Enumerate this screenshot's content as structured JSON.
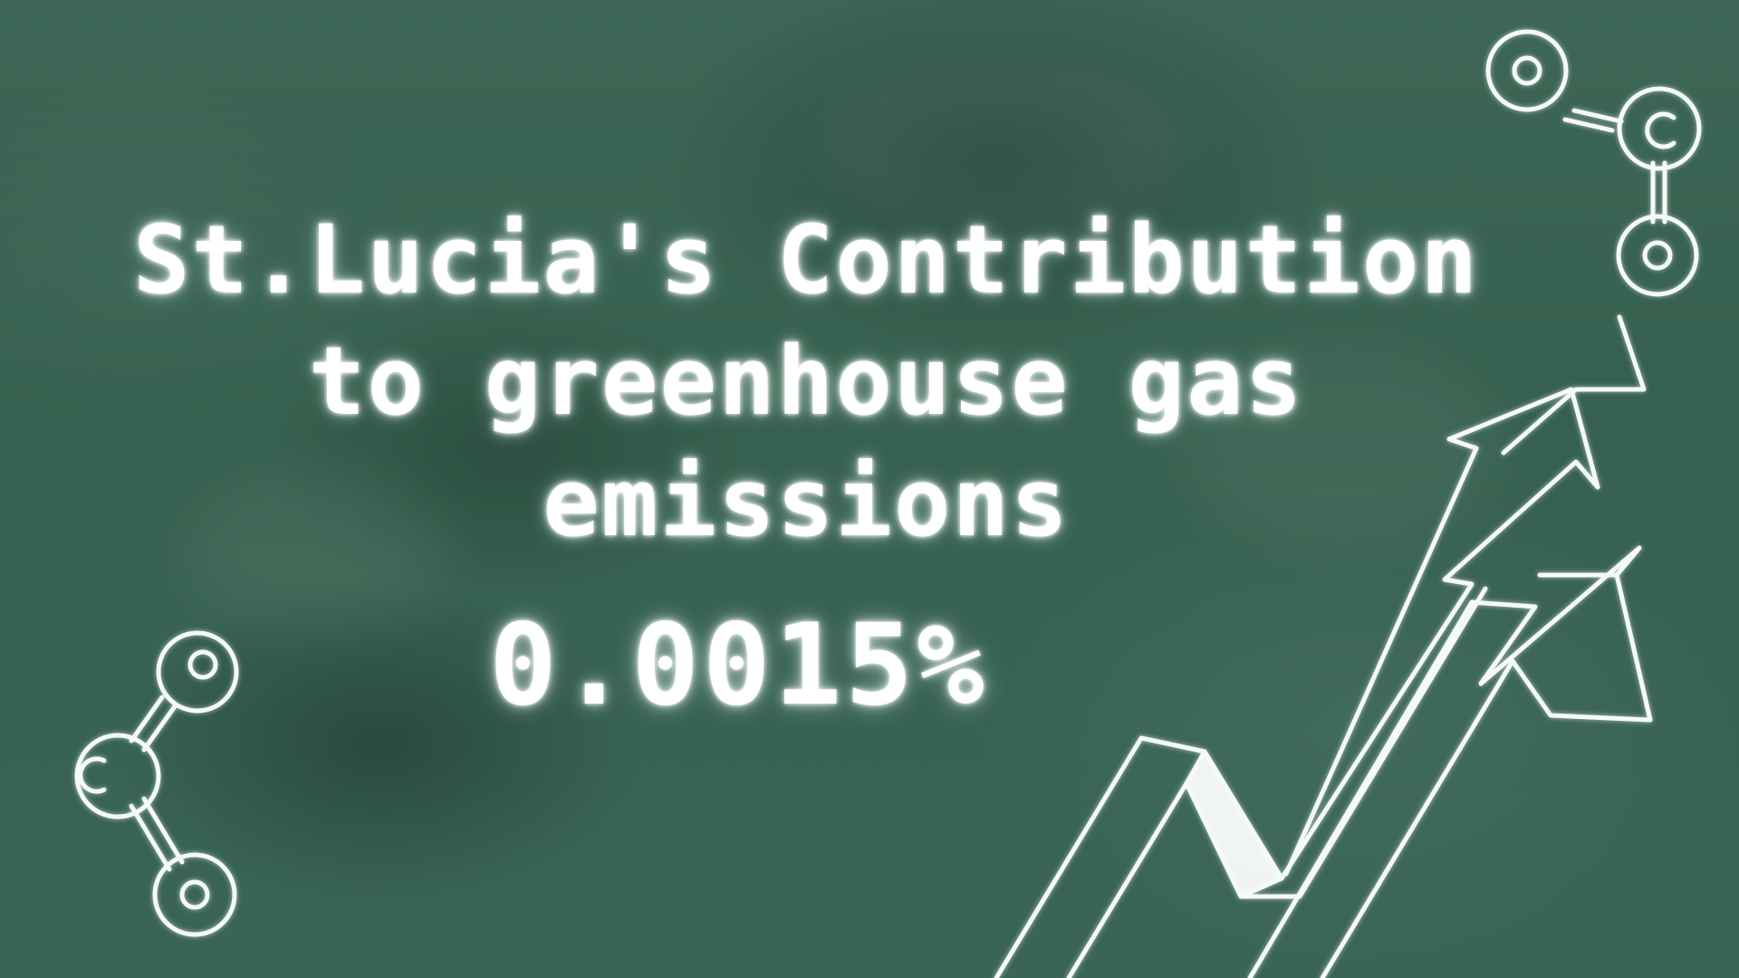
{
  "title": {
    "lines": [
      "St.Lucia's Contribution",
      "to greenhouse gas",
      "emissions"
    ]
  },
  "statistic": {
    "value": "0.0015%"
  },
  "icons": {
    "molecule_top_right": "molecule-icon",
    "molecule_bottom_left": "molecule-icon",
    "arrows": "rising-arrows-icon"
  },
  "colors": {
    "background": "#36604f",
    "chalk": "#ffffff"
  }
}
